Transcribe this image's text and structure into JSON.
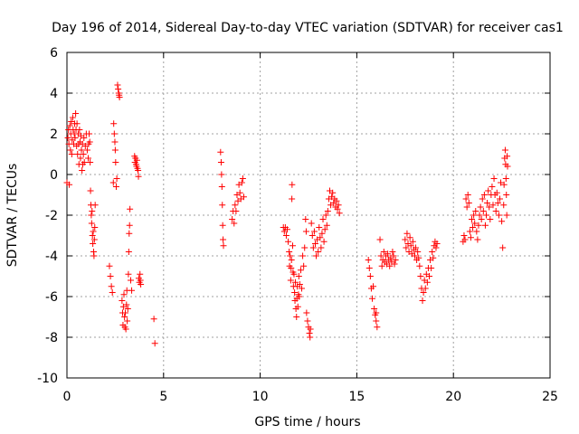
{
  "chart_data": {
    "type": "scatter",
    "title": "Day 196 of 2014, Sidereal Day-to-day VTEC variation (SDTVAR) for receiver cas1",
    "xlabel": "GPS time / hours",
    "ylabel": "SDTVAR / TECUs",
    "xlim": [
      0,
      25
    ],
    "ylim": [
      -10,
      6
    ],
    "xticks": [
      0,
      5,
      10,
      15,
      20,
      25
    ],
    "yticks": [
      -10,
      -8,
      -6,
      -4,
      -2,
      0,
      2,
      4,
      6
    ],
    "grid": true,
    "marker": "+",
    "series": [
      {
        "name": "cas1",
        "color": "#ff0000",
        "points": [
          [
            0.0,
            -0.4
          ],
          [
            0.05,
            1.8
          ],
          [
            0.08,
            2.2
          ],
          [
            0.1,
            1.5
          ],
          [
            0.12,
            -0.5
          ],
          [
            0.15,
            2.4
          ],
          [
            0.18,
            1.2
          ],
          [
            0.2,
            2.0
          ],
          [
            0.22,
            2.6
          ],
          [
            0.25,
            1.0
          ],
          [
            0.27,
            1.7
          ],
          [
            0.3,
            2.8
          ],
          [
            0.32,
            2.2
          ],
          [
            0.35,
            1.5
          ],
          [
            0.38,
            2.0
          ],
          [
            0.4,
            2.5
          ],
          [
            0.42,
            1.8
          ],
          [
            0.45,
            3.0
          ],
          [
            0.47,
            2.2
          ],
          [
            0.5,
            1.4
          ],
          [
            0.52,
            2.5
          ],
          [
            0.55,
            1.0
          ],
          [
            0.58,
            2.0
          ],
          [
            0.6,
            1.5
          ],
          [
            0.62,
            0.5
          ],
          [
            0.65,
            2.2
          ],
          [
            0.68,
            1.6
          ],
          [
            0.7,
            0.8
          ],
          [
            0.72,
            1.9
          ],
          [
            0.75,
            1.2
          ],
          [
            0.78,
            0.2
          ],
          [
            0.8,
            1.5
          ],
          [
            0.82,
            0.5
          ],
          [
            0.85,
            1.0
          ],
          [
            0.88,
            1.8
          ],
          [
            0.9,
            0.6
          ],
          [
            0.95,
            1.4
          ],
          [
            1.0,
            2.0
          ],
          [
            1.05,
            1.2
          ],
          [
            1.1,
            0.8
          ],
          [
            1.12,
            1.5
          ],
          [
            1.15,
            2.0
          ],
          [
            1.18,
            1.6
          ],
          [
            1.2,
            0.6
          ],
          [
            1.22,
            -0.8
          ],
          [
            1.24,
            -1.5
          ],
          [
            1.26,
            -2.0
          ],
          [
            1.28,
            -2.4
          ],
          [
            1.3,
            -1.8
          ],
          [
            1.32,
            -3.0
          ],
          [
            1.34,
            -3.4
          ],
          [
            1.36,
            -2.8
          ],
          [
            1.38,
            -3.8
          ],
          [
            1.4,
            -4.0
          ],
          [
            1.42,
            -3.2
          ],
          [
            1.44,
            -2.6
          ],
          [
            1.46,
            -1.5
          ],
          [
            2.2,
            -4.5
          ],
          [
            2.25,
            -5.0
          ],
          [
            2.3,
            -5.5
          ],
          [
            2.35,
            -5.8
          ],
          [
            2.4,
            -0.4
          ],
          [
            2.42,
            2.5
          ],
          [
            2.45,
            2.0
          ],
          [
            2.48,
            1.6
          ],
          [
            2.5,
            1.2
          ],
          [
            2.52,
            0.6
          ],
          [
            2.55,
            -0.6
          ],
          [
            2.58,
            -0.2
          ],
          [
            2.62,
            4.4
          ],
          [
            2.65,
            4.2
          ],
          [
            2.68,
            4.0
          ],
          [
            2.7,
            3.9
          ],
          [
            2.72,
            3.8
          ],
          [
            2.85,
            -6.2
          ],
          [
            2.88,
            -6.8
          ],
          [
            2.9,
            -7.4
          ],
          [
            2.92,
            -6.5
          ],
          [
            2.95,
            -5.9
          ],
          [
            2.98,
            -7.0
          ],
          [
            3.0,
            -7.5
          ],
          [
            3.02,
            -6.8
          ],
          [
            3.05,
            -7.6
          ],
          [
            3.08,
            -6.4
          ],
          [
            3.1,
            -5.7
          ],
          [
            3.12,
            -7.2
          ],
          [
            3.15,
            -6.6
          ],
          [
            3.18,
            -4.9
          ],
          [
            3.2,
            -3.8
          ],
          [
            3.22,
            -2.9
          ],
          [
            3.24,
            -2.5
          ],
          [
            3.26,
            -1.7
          ],
          [
            3.3,
            -5.2
          ],
          [
            3.35,
            -5.7
          ],
          [
            3.5,
            0.9
          ],
          [
            3.52,
            0.6
          ],
          [
            3.55,
            0.8
          ],
          [
            3.58,
            0.5
          ],
          [
            3.6,
            0.4
          ],
          [
            3.62,
            0.7
          ],
          [
            3.65,
            0.3
          ],
          [
            3.68,
            0.2
          ],
          [
            3.7,
            -0.1
          ],
          [
            3.72,
            -5.1
          ],
          [
            3.75,
            -5.3
          ],
          [
            3.78,
            -4.9
          ],
          [
            3.8,
            -5.2
          ],
          [
            3.82,
            -5.4
          ],
          [
            4.5,
            -7.1
          ],
          [
            4.55,
            -8.3
          ],
          [
            7.95,
            1.1
          ],
          [
            7.98,
            0.6
          ],
          [
            8.0,
            0.0
          ],
          [
            8.02,
            -0.6
          ],
          [
            8.04,
            -1.5
          ],
          [
            8.06,
            -2.5
          ],
          [
            8.08,
            -3.2
          ],
          [
            8.1,
            -3.5
          ],
          [
            8.55,
            -2.2
          ],
          [
            8.6,
            -1.8
          ],
          [
            8.65,
            -2.4
          ],
          [
            8.7,
            -1.5
          ],
          [
            8.75,
            -1.8
          ],
          [
            8.8,
            -1.0
          ],
          [
            8.85,
            -1.3
          ],
          [
            8.9,
            -0.5
          ],
          [
            8.95,
            -0.9
          ],
          [
            9.0,
            -1.2
          ],
          [
            9.05,
            -0.4
          ],
          [
            9.1,
            -0.2
          ],
          [
            9.15,
            -1.1
          ],
          [
            11.2,
            -2.6
          ],
          [
            11.25,
            -2.8
          ],
          [
            11.3,
            -2.6
          ],
          [
            11.35,
            -3.0
          ],
          [
            11.4,
            -2.7
          ],
          [
            11.45,
            -3.3
          ],
          [
            11.5,
            -3.8
          ],
          [
            11.52,
            -4.5
          ],
          [
            11.55,
            -4.0
          ],
          [
            11.58,
            -5.2
          ],
          [
            11.6,
            -4.6
          ],
          [
            11.62,
            -4.2
          ],
          [
            11.64,
            -1.2
          ],
          [
            11.65,
            -0.5
          ],
          [
            11.68,
            -3.5
          ],
          [
            11.7,
            -4.8
          ],
          [
            11.72,
            -5.5
          ],
          [
            11.75,
            -4.9
          ],
          [
            11.78,
            -5.8
          ],
          [
            11.8,
            -6.2
          ],
          [
            11.82,
            -5.3
          ],
          [
            11.85,
            -6.6
          ],
          [
            11.88,
            -7.0
          ],
          [
            11.9,
            -6.1
          ],
          [
            11.92,
            -5.5
          ],
          [
            11.95,
            -6.5
          ],
          [
            11.98,
            -5.9
          ],
          [
            12.0,
            -5.0
          ],
          [
            12.02,
            -6.0
          ],
          [
            12.05,
            -5.4
          ],
          [
            12.1,
            -4.7
          ],
          [
            12.15,
            -5.6
          ],
          [
            12.2,
            -4.0
          ],
          [
            12.25,
            -4.5
          ],
          [
            12.3,
            -3.6
          ],
          [
            12.35,
            -2.2
          ],
          [
            12.38,
            -2.8
          ],
          [
            12.4,
            -6.8
          ],
          [
            12.45,
            -7.2
          ],
          [
            12.5,
            -7.5
          ],
          [
            12.55,
            -7.8
          ],
          [
            12.58,
            -8.0
          ],
          [
            12.6,
            -7.6
          ],
          [
            12.65,
            -2.4
          ],
          [
            12.7,
            -3.0
          ],
          [
            12.75,
            -3.6
          ],
          [
            12.8,
            -2.8
          ],
          [
            12.85,
            -3.4
          ],
          [
            12.9,
            -4.0
          ],
          [
            12.95,
            -3.2
          ],
          [
            13.0,
            -3.8
          ],
          [
            13.05,
            -2.6
          ],
          [
            13.1,
            -3.1
          ],
          [
            13.15,
            -3.6
          ],
          [
            13.2,
            -2.9
          ],
          [
            13.25,
            -2.2
          ],
          [
            13.3,
            -3.3
          ],
          [
            13.35,
            -2.7
          ],
          [
            13.4,
            -2.0
          ],
          [
            13.45,
            -2.5
          ],
          [
            13.5,
            -1.8
          ],
          [
            13.55,
            -1.2
          ],
          [
            13.6,
            -0.8
          ],
          [
            13.65,
            -1.5
          ],
          [
            13.7,
            -1.1
          ],
          [
            13.75,
            -0.9
          ],
          [
            13.8,
            -1.4
          ],
          [
            13.85,
            -1.2
          ],
          [
            13.9,
            -1.6
          ],
          [
            13.95,
            -1.3
          ],
          [
            14.0,
            -1.7
          ],
          [
            14.05,
            -1.5
          ],
          [
            14.1,
            -1.9
          ],
          [
            15.6,
            -4.2
          ],
          [
            15.65,
            -4.6
          ],
          [
            15.7,
            -5.0
          ],
          [
            15.75,
            -5.6
          ],
          [
            15.8,
            -6.1
          ],
          [
            15.85,
            -5.5
          ],
          [
            15.9,
            -6.6
          ],
          [
            15.95,
            -6.9
          ],
          [
            16.0,
            -7.2
          ],
          [
            16.05,
            -7.5
          ],
          [
            16.0,
            -6.8
          ],
          [
            16.2,
            -3.2
          ],
          [
            16.25,
            -4.0
          ],
          [
            16.3,
            -4.5
          ],
          [
            16.35,
            -4.2
          ],
          [
            16.4,
            -3.8
          ],
          [
            16.45,
            -4.3
          ],
          [
            16.5,
            -4.0
          ],
          [
            16.55,
            -4.4
          ],
          [
            16.6,
            -3.9
          ],
          [
            16.65,
            -4.2
          ],
          [
            16.7,
            -4.5
          ],
          [
            16.75,
            -4.1
          ],
          [
            16.8,
            -4.3
          ],
          [
            16.85,
            -3.8
          ],
          [
            16.9,
            -4.0
          ],
          [
            16.95,
            -4.4
          ],
          [
            17.0,
            -4.2
          ],
          [
            17.5,
            -3.2
          ],
          [
            17.55,
            -3.6
          ],
          [
            17.6,
            -2.9
          ],
          [
            17.65,
            -3.4
          ],
          [
            17.7,
            -3.8
          ],
          [
            17.75,
            -3.1
          ],
          [
            17.8,
            -3.5
          ],
          [
            17.85,
            -3.9
          ],
          [
            17.9,
            -3.3
          ],
          [
            17.95,
            -3.7
          ],
          [
            18.0,
            -4.0
          ],
          [
            18.05,
            -3.6
          ],
          [
            18.1,
            -4.2
          ],
          [
            18.15,
            -3.8
          ],
          [
            18.2,
            -4.1
          ],
          [
            18.25,
            -4.5
          ],
          [
            18.3,
            -5.0
          ],
          [
            18.35,
            -5.6
          ],
          [
            18.4,
            -6.2
          ],
          [
            18.45,
            -5.8
          ],
          [
            18.5,
            -5.2
          ],
          [
            18.55,
            -5.6
          ],
          [
            18.6,
            -4.9
          ],
          [
            18.65,
            -5.3
          ],
          [
            18.7,
            -4.6
          ],
          [
            18.75,
            -5.0
          ],
          [
            18.8,
            -4.2
          ],
          [
            18.85,
            -4.6
          ],
          [
            18.9,
            -3.8
          ],
          [
            18.95,
            -4.1
          ],
          [
            19.0,
            -3.5
          ],
          [
            19.05,
            -3.3
          ],
          [
            19.1,
            -3.6
          ],
          [
            19.15,
            -3.4
          ],
          [
            20.5,
            -3.3
          ],
          [
            20.55,
            -3.0
          ],
          [
            20.6,
            -3.2
          ],
          [
            20.65,
            -1.2
          ],
          [
            20.7,
            -1.6
          ],
          [
            20.75,
            -1.0
          ],
          [
            20.8,
            -1.4
          ],
          [
            20.85,
            -2.8
          ],
          [
            20.9,
            -3.1
          ],
          [
            20.95,
            -2.2
          ],
          [
            21.0,
            -2.6
          ],
          [
            21.05,
            -2.0
          ],
          [
            21.1,
            -2.4
          ],
          [
            21.15,
            -1.8
          ],
          [
            21.2,
            -2.8
          ],
          [
            21.25,
            -3.2
          ],
          [
            21.3,
            -2.5
          ],
          [
            21.35,
            -2.0
          ],
          [
            21.4,
            -1.6
          ],
          [
            21.45,
            -2.2
          ],
          [
            21.5,
            -1.2
          ],
          [
            21.55,
            -1.8
          ],
          [
            21.6,
            -1.0
          ],
          [
            21.65,
            -2.5
          ],
          [
            21.7,
            -2.0
          ],
          [
            21.75,
            -1.4
          ],
          [
            21.8,
            -0.8
          ],
          [
            21.85,
            -1.6
          ],
          [
            21.9,
            -2.2
          ],
          [
            21.95,
            -1.0
          ],
          [
            22.0,
            -0.6
          ],
          [
            22.05,
            -1.5
          ],
          [
            22.1,
            -0.2
          ],
          [
            22.15,
            -1.0
          ],
          [
            22.2,
            -1.8
          ],
          [
            22.25,
            -0.9
          ],
          [
            22.3,
            -1.4
          ],
          [
            22.35,
            -2.0
          ],
          [
            22.4,
            -1.2
          ],
          [
            22.45,
            -0.4
          ],
          [
            22.5,
            -2.3
          ],
          [
            22.55,
            -3.6
          ],
          [
            22.6,
            -1.5
          ],
          [
            22.62,
            -0.5
          ],
          [
            22.65,
            0.8
          ],
          [
            22.68,
            1.2
          ],
          [
            22.7,
            0.5
          ],
          [
            22.72,
            -0.2
          ],
          [
            22.74,
            -1.0
          ],
          [
            22.76,
            -2.0
          ],
          [
            22.78,
            0.9
          ],
          [
            22.8,
            0.4
          ]
        ]
      }
    ]
  }
}
